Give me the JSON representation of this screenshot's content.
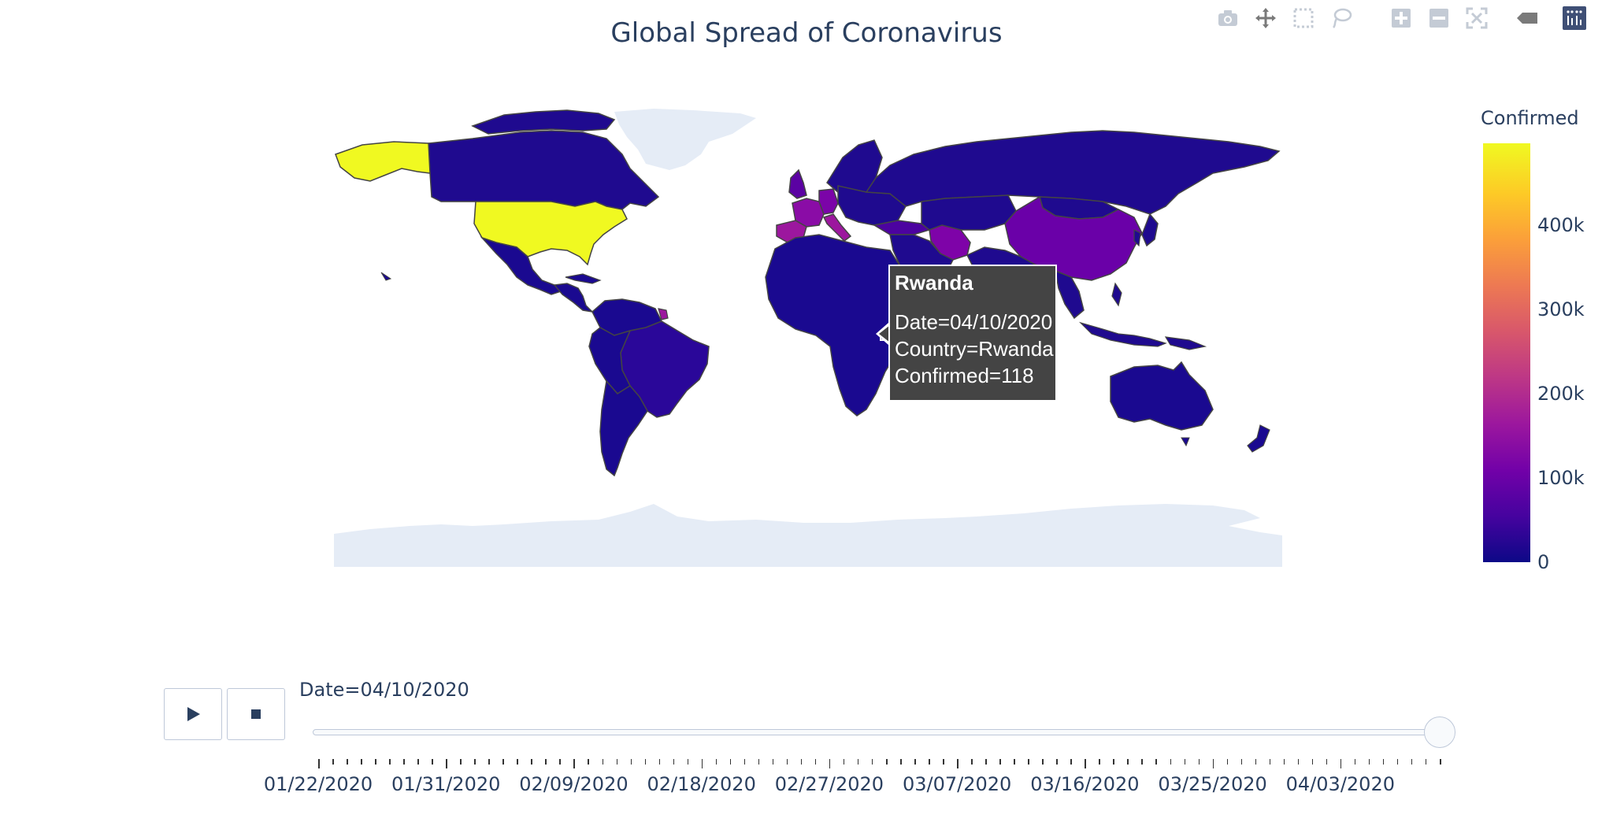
{
  "title": "Global Spread of Coronavirus",
  "modebar": {
    "buttons": [
      "camera-icon",
      "pan-icon",
      "box-select-icon",
      "lasso-icon",
      "zoom-in-icon",
      "zoom-out-icon",
      "reset-icon",
      "hover-closest-icon",
      "plotly-logo-icon"
    ]
  },
  "colorbar": {
    "title": "Confirmed",
    "ticks": [
      "400k",
      "300k",
      "200k",
      "100k",
      "0"
    ],
    "colorscale": [
      "#0d0887",
      "#46039f",
      "#7201a8",
      "#9c179e",
      "#bd3786",
      "#d8576b",
      "#ed7953",
      "#fb9f3a",
      "#fdca26",
      "#f0f921"
    ],
    "range": [
      0,
      500000
    ]
  },
  "tooltip": {
    "title": "Rwanda",
    "date": "Date=04/10/2020",
    "country": "Country=Rwanda",
    "confirmed": "Confirmed=118"
  },
  "animation": {
    "current_label": "Date=04/10/2020",
    "play_icon": "play-icon",
    "stop_icon": "stop-icon",
    "tick_labels": [
      "01/22/2020",
      "01/31/2020",
      "02/09/2020",
      "02/18/2020",
      "02/27/2020",
      "03/07/2020",
      "03/16/2020",
      "03/25/2020",
      "04/03/2020"
    ],
    "frame_count": 80,
    "current_frame": 79
  },
  "chart_data": {
    "type": "choropleth",
    "title": "Global Spread of Coronavirus",
    "colorbar_title": "Confirmed",
    "date": "04/10/2020",
    "regions": [
      {
        "name": "United States",
        "level": "highest"
      },
      {
        "name": "Alaska",
        "level": "highest"
      },
      {
        "name": "China",
        "level": "medium-low"
      },
      {
        "name": "Spain",
        "level": "medium-low"
      },
      {
        "name": "Italy",
        "level": "medium-low"
      },
      {
        "name": "France",
        "level": "medium-low"
      },
      {
        "name": "Germany",
        "level": "medium-low"
      },
      {
        "name": "Iran",
        "level": "medium-low"
      },
      {
        "name": "United Kingdom",
        "level": "low-medium"
      },
      {
        "name": "Turkey",
        "level": "low-medium"
      },
      {
        "name": "Rwanda",
        "value": 118
      }
    ],
    "colors": {
      "ocean": "#ffffff",
      "land_nodata": "#e5ecf6",
      "lowest": "#0d0887",
      "low": "#3c049b",
      "medium": "#7e03a8",
      "highest": "#f0f921",
      "border": "#444444"
    }
  }
}
